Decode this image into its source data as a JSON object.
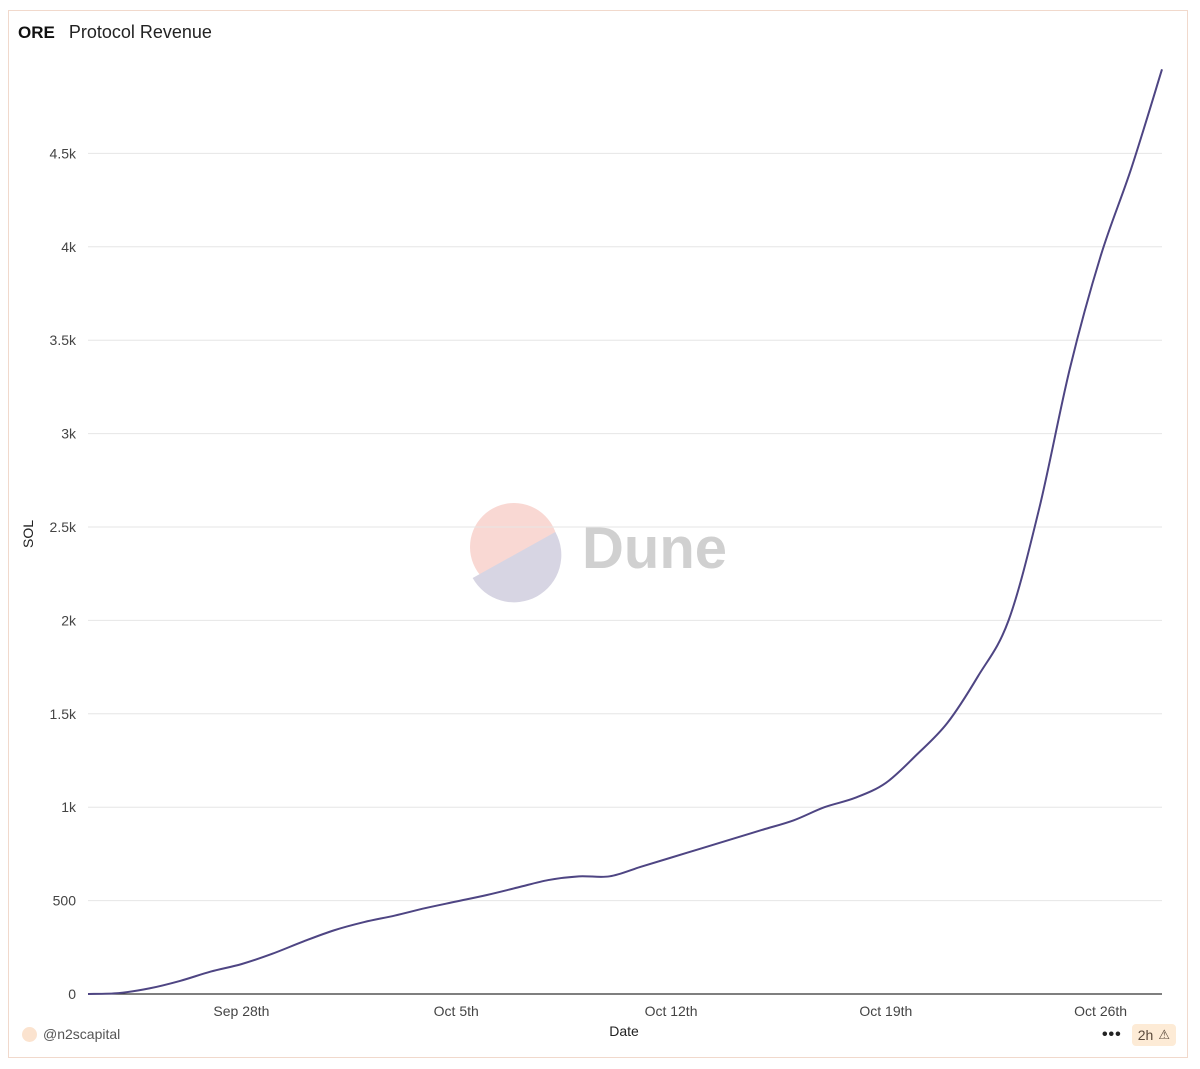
{
  "header": {
    "project": "ORE",
    "title": "Protocol Revenue"
  },
  "footer": {
    "username": "@n2scapital",
    "more_label": "•••",
    "refresh_badge": "2h",
    "warning_icon": "warning-icon"
  },
  "watermark": {
    "text": "Dune",
    "colors": {
      "top": "#f9d8d3",
      "bottom": "#d7d5e3",
      "text": "#d0d0d0"
    }
  },
  "colors": {
    "line": "#4e4583",
    "grid": "#e6e6e6",
    "axis": "#333333"
  },
  "chart_data": {
    "type": "line",
    "title": "Protocol Revenue",
    "xlabel": "Date",
    "ylabel": "SOL",
    "x_type": "date",
    "xlim": [
      "2024-09-23",
      "2024-10-28"
    ],
    "ylim": [
      0,
      5000
    ],
    "yticks": [
      0,
      500,
      1000,
      1500,
      2000,
      2500,
      3000,
      3500,
      4000,
      4500
    ],
    "ytick_labels": [
      "0",
      "500",
      "1k",
      "1.5k",
      "2k",
      "2.5k",
      "3k",
      "3.5k",
      "4k",
      "4.5k"
    ],
    "xticks": [
      "2024-09-28",
      "2024-10-05",
      "2024-10-12",
      "2024-10-19",
      "2024-10-26"
    ],
    "xtick_labels": [
      "Sep 28th",
      "Oct 5th",
      "Oct 12th",
      "Oct 19th",
      "Oct 26th"
    ],
    "grid": true,
    "legend": "none",
    "series": [
      {
        "color": "#4e4583",
        "x": [
          "2024-09-23",
          "2024-09-24",
          "2024-09-25",
          "2024-09-26",
          "2024-09-27",
          "2024-09-28",
          "2024-09-29",
          "2024-09-30",
          "2024-10-01",
          "2024-10-02",
          "2024-10-03",
          "2024-10-04",
          "2024-10-05",
          "2024-10-06",
          "2024-10-07",
          "2024-10-08",
          "2024-10-09",
          "2024-10-10",
          "2024-10-11",
          "2024-10-12",
          "2024-10-13",
          "2024-10-14",
          "2024-10-15",
          "2024-10-16",
          "2024-10-17",
          "2024-10-18",
          "2024-10-19",
          "2024-10-20",
          "2024-10-21",
          "2024-10-22",
          "2024-10-23",
          "2024-10-24",
          "2024-10-25",
          "2024-10-26",
          "2024-10-27",
          "2024-10-28"
        ],
        "y": [
          0,
          5,
          30,
          70,
          120,
          160,
          215,
          280,
          340,
          385,
          420,
          460,
          495,
          530,
          570,
          610,
          630,
          630,
          680,
          730,
          780,
          830,
          880,
          930,
          1000,
          1050,
          1130,
          1280,
          1450,
          1700,
          2000,
          2600,
          3350,
          3950,
          4420,
          4950
        ]
      }
    ]
  }
}
